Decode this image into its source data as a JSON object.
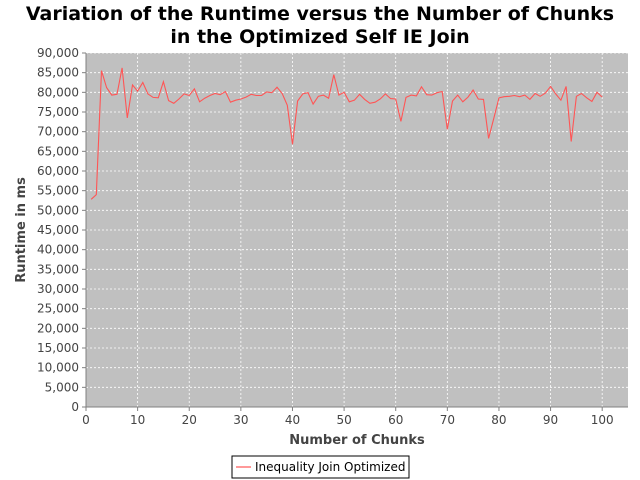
{
  "chart_data": {
    "type": "line",
    "title": "Variation of the Runtime versus the Number of Chunks",
    "title_line2": "in the Optimized Self IE Join",
    "xlabel": "Number of Chunks",
    "ylabel": "Runtime in ms",
    "xlim": [
      0,
      105
    ],
    "ylim": [
      0,
      90000
    ],
    "xticks": [
      0,
      10,
      20,
      30,
      40,
      50,
      60,
      70,
      80,
      90,
      100
    ],
    "yticks": [
      0,
      5000,
      10000,
      15000,
      20000,
      25000,
      30000,
      35000,
      40000,
      45000,
      50000,
      55000,
      60000,
      65000,
      70000,
      75000,
      80000,
      85000,
      90000
    ],
    "ytick_labels": [
      "0",
      "5,000",
      "10,000",
      "15,000",
      "20,000",
      "25,000",
      "30,000",
      "35,000",
      "40,000",
      "45,000",
      "50,000",
      "55,000",
      "60,000",
      "65,000",
      "70,000",
      "75,000",
      "80,000",
      "85,000",
      "90,000"
    ],
    "grid": true,
    "legend_position": "bottom",
    "background": "#c0c0c0",
    "series": [
      {
        "name": "Inequality Join Optimized",
        "color": "#ff5555",
        "x": [
          1,
          2,
          3,
          4,
          5,
          6,
          7,
          8,
          9,
          10,
          11,
          12,
          13,
          14,
          15,
          16,
          17,
          18,
          19,
          20,
          21,
          22,
          23,
          24,
          25,
          26,
          27,
          28,
          29,
          30,
          31,
          32,
          33,
          34,
          35,
          36,
          37,
          38,
          39,
          40,
          41,
          42,
          43,
          44,
          45,
          46,
          47,
          48,
          49,
          50,
          51,
          52,
          53,
          54,
          55,
          56,
          57,
          58,
          59,
          60,
          61,
          62,
          63,
          64,
          65,
          66,
          67,
          68,
          69,
          70,
          71,
          72,
          73,
          74,
          75,
          76,
          77,
          78,
          79,
          80,
          81,
          82,
          83,
          84,
          85,
          86,
          87,
          88,
          89,
          90,
          91,
          92,
          93,
          94,
          95,
          96,
          97,
          98,
          99,
          100
        ],
        "y": [
          52800,
          54000,
          85500,
          81200,
          79300,
          79500,
          86200,
          73500,
          81900,
          80300,
          82500,
          79600,
          78700,
          78600,
          82700,
          77900,
          77200,
          78300,
          79600,
          79200,
          80900,
          77600,
          78500,
          79200,
          79700,
          79400,
          80200,
          77500,
          78000,
          78300,
          78800,
          79500,
          79200,
          79200,
          80100,
          79900,
          81300,
          79700,
          76700,
          66800,
          77800,
          79600,
          79900,
          77000,
          79000,
          79300,
          78500,
          84500,
          79300,
          80000,
          77600,
          78000,
          79500,
          78200,
          77200,
          77500,
          78300,
          79600,
          78400,
          78300,
          72600,
          78700,
          79300,
          79100,
          81400,
          79400,
          79300,
          79900,
          80200,
          70600,
          77800,
          79300,
          77600,
          78800,
          80600,
          78300,
          78200,
          68300,
          73400,
          78600,
          78900,
          79000,
          79200,
          78900,
          79300,
          78200,
          79700,
          79000,
          79800,
          81500,
          79600,
          78000,
          81500,
          67500,
          79000,
          79700,
          78600,
          77700,
          80000,
          78800
        ]
      }
    ]
  }
}
